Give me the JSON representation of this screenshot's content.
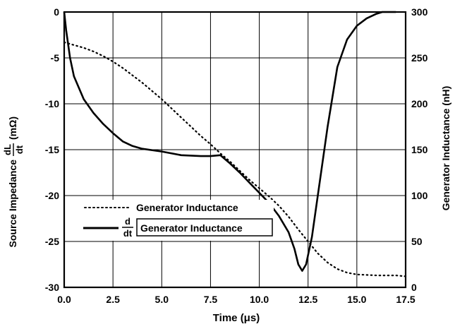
{
  "chart_data": {
    "type": "line",
    "xlabel": "Time (μs)",
    "ylabel_left": "Source Impedance dL/dt (mΩ)",
    "ylabel_right": "Generator Inductance (nH)",
    "xlim": [
      0,
      17.5
    ],
    "ylim_left": [
      -30,
      0
    ],
    "ylim_right": [
      0,
      300
    ],
    "x_ticks": [
      "0.0",
      "2.5",
      "5.0",
      "7.5",
      "10.0",
      "12.5",
      "15.0",
      "17.5"
    ],
    "y_ticks_left": [
      "0",
      "-5",
      "-10",
      "-15",
      "-20",
      "-25",
      "-30"
    ],
    "y_ticks_right": [
      "300",
      "250",
      "200",
      "150",
      "100",
      "50",
      "0"
    ],
    "grid": true,
    "legend_position": "lower-left",
    "series": [
      {
        "name": "Generator Inductance",
        "axis": "right",
        "style": "dotted",
        "x": [
          0.0,
          0.5,
          1.0,
          1.5,
          2.0,
          2.5,
          3.0,
          3.5,
          4.0,
          4.5,
          5.0,
          5.5,
          6.0,
          6.5,
          7.0,
          7.5,
          8.0,
          8.5,
          9.0,
          9.5,
          10.0,
          10.5,
          11.0,
          11.5,
          12.0,
          12.5,
          13.0,
          13.5,
          14.0,
          14.5,
          15.0,
          15.5,
          16.0,
          16.5,
          17.0,
          17.5
        ],
        "y": [
          267,
          264,
          261,
          257,
          252,
          246,
          239,
          231,
          223,
          214,
          205,
          195,
          185,
          175,
          165,
          156,
          146,
          137,
          127,
          117,
          108,
          99,
          89,
          77,
          63,
          50,
          37,
          27,
          20,
          16,
          14,
          13.5,
          13,
          13,
          13,
          12
        ]
      },
      {
        "name": "d/dt [Generator Inductance]",
        "axis": "left",
        "style": "solid",
        "x": [
          0.0,
          0.1,
          0.3,
          0.5,
          1.0,
          1.5,
          2.0,
          2.5,
          3.0,
          3.5,
          4.0,
          5.0,
          6.0,
          7.0,
          7.5,
          8.0,
          8.5,
          9.0,
          9.5,
          10.0,
          10.5,
          11.0,
          11.5,
          11.8,
          12.0,
          12.2,
          12.4,
          12.7,
          13.0,
          13.5,
          14.0,
          14.5,
          15.0,
          15.5,
          16.0,
          16.3,
          16.5,
          17.0
        ],
        "y": [
          0,
          -2,
          -5,
          -7,
          -9.5,
          -11,
          -12.2,
          -13.2,
          -14.1,
          -14.6,
          -14.9,
          -15.2,
          -15.6,
          -15.7,
          -15.7,
          -15.6,
          -16.5,
          -17.5,
          -18.6,
          -19.7,
          -20.8,
          -22.2,
          -24.0,
          -25.8,
          -27.5,
          -28.2,
          -27.5,
          -24.5,
          -20.0,
          -12.5,
          -6.0,
          -3.0,
          -1.5,
          -0.7,
          -0.2,
          0,
          0,
          0
        ]
      }
    ],
    "legend": {
      "dotted_label": "Generator Inductance",
      "solid_label_prefix_num": "d",
      "solid_label_prefix_den": "dt",
      "solid_label_boxed": "Generator Inductance"
    }
  }
}
